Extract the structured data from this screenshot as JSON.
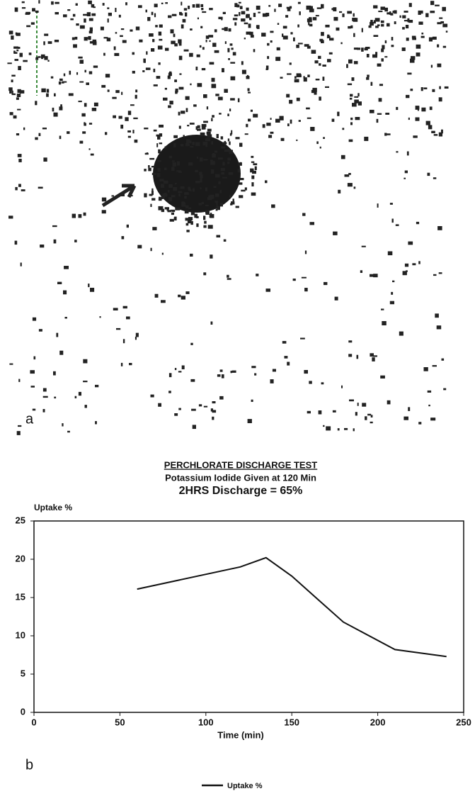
{
  "panel_labels": {
    "image": "a",
    "chart": "b"
  },
  "chart_data": {
    "type": "line",
    "title": "PERCHLORATE DISCHARGE TEST",
    "subtitle": "Potassium Iodide Given at 120 Min",
    "annotation": "2HRS Discharge = 65%",
    "ylabel": "Uptake %",
    "xlabel": "Time (min)",
    "x": [
      60,
      120,
      135,
      150,
      165,
      180,
      210,
      240
    ],
    "series": [
      {
        "name": "Uptake %",
        "color": "#111111",
        "values": [
          16.1,
          19,
          20.2,
          17.8,
          14.8,
          11.8,
          8.2,
          7.3
        ]
      }
    ],
    "xlim": [
      0,
      250
    ],
    "xticks": [
      0,
      50,
      100,
      150,
      200,
      250
    ],
    "ylim": [
      0,
      25
    ],
    "yticks": [
      0,
      5,
      10,
      15,
      20,
      25
    ],
    "grid": false,
    "legend": "bottom"
  }
}
